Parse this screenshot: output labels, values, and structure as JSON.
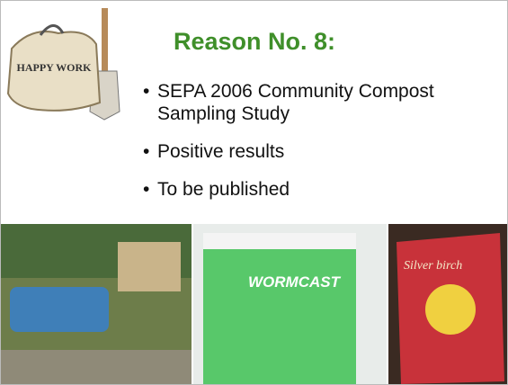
{
  "slide": {
    "title": "Reason No. 8:",
    "bullets": [
      "SEPA 2006 Community Compost Sampling Study",
      "Positive results",
      "To be published"
    ],
    "images": {
      "clipart_label": "HAPPY WORK",
      "tub_label": "WORMCAST",
      "bag_label": "Silver birch"
    }
  }
}
